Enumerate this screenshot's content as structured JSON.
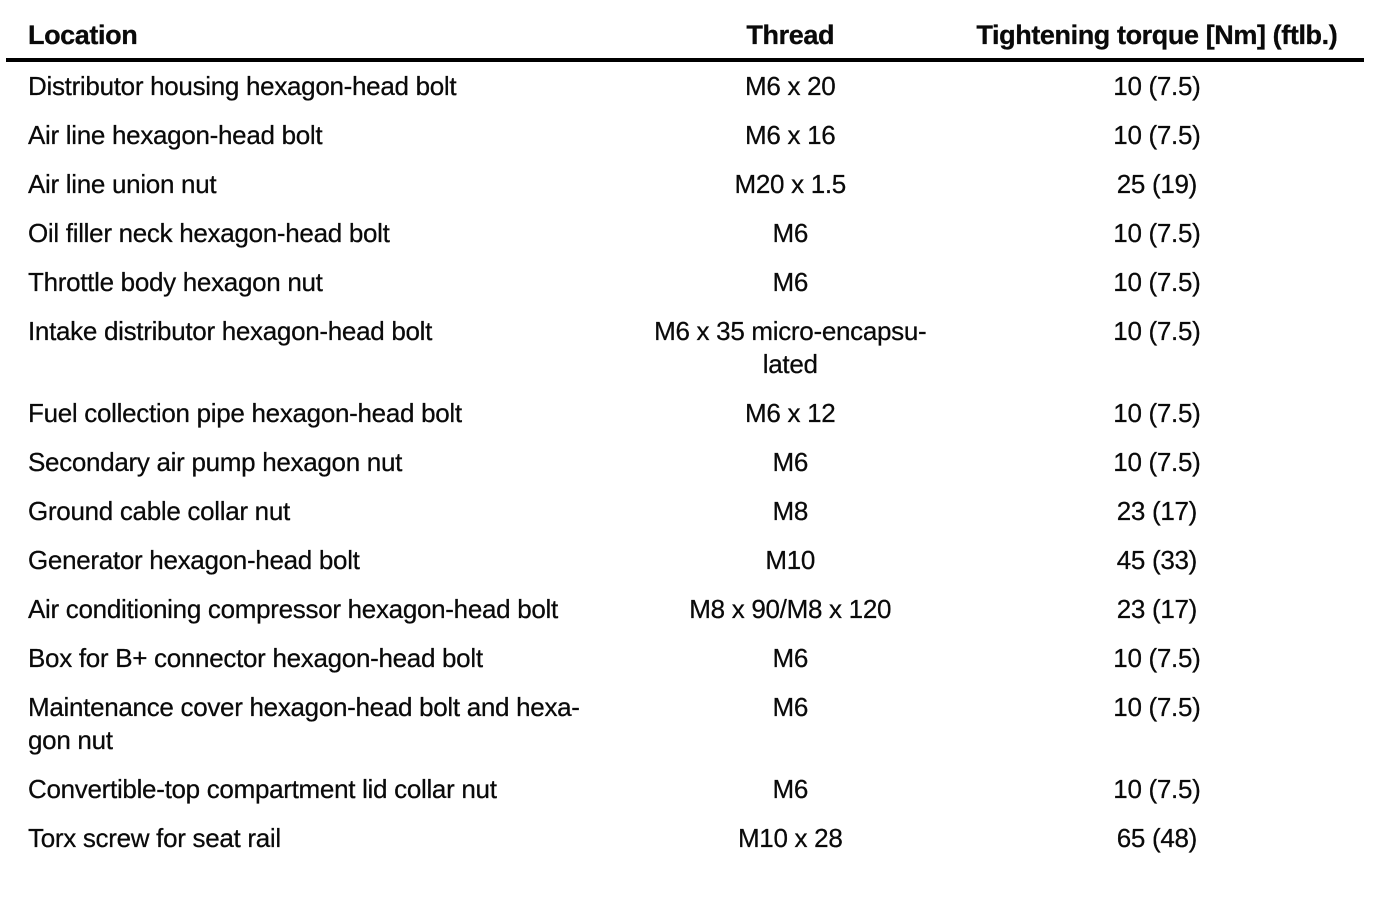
{
  "colors": {
    "background": "#ffffff",
    "text": "#0a0a0a",
    "header_rule": "#000000"
  },
  "table": {
    "columns": [
      {
        "key": "location",
        "label": "Location",
        "align": "left"
      },
      {
        "key": "thread",
        "label": "Thread",
        "align": "center"
      },
      {
        "key": "torque",
        "label": "Tightening torque [Nm] (ftlb.)",
        "align": "center"
      }
    ],
    "rows": [
      {
        "location": "Distributor housing hexagon-head bolt",
        "thread": "M6 x 20",
        "torque": "10 (7.5)"
      },
      {
        "location": "Air line hexagon-head bolt",
        "thread": "M6 x 16",
        "torque": "10 (7.5)"
      },
      {
        "location": "Air line union nut",
        "thread": "M20 x 1.5",
        "torque": "25 (19)"
      },
      {
        "location": "Oil filler neck hexagon-head bolt",
        "thread": "M6",
        "torque": "10 (7.5)"
      },
      {
        "location": "Throttle body hexagon nut",
        "thread": "M6",
        "torque": "10 (7.5)"
      },
      {
        "location": "Intake distributor hexagon-head bolt",
        "thread": "M6 x 35 micro-encapsu-\nlated",
        "torque": "10 (7.5)"
      },
      {
        "location": "Fuel collection pipe hexagon-head bolt",
        "thread": "M6 x 12",
        "torque": "10 (7.5)"
      },
      {
        "location": "Secondary air pump hexagon nut",
        "thread": "M6",
        "torque": "10 (7.5)"
      },
      {
        "location": "Ground cable collar nut",
        "thread": "M8",
        "torque": "23 (17)"
      },
      {
        "location": "Generator hexagon-head bolt",
        "thread": "M10",
        "torque": "45 (33)"
      },
      {
        "location": "Air conditioning compressor hexagon-head bolt",
        "thread": "M8 x 90/M8 x 120",
        "torque": "23 (17)"
      },
      {
        "location": "Box for B+ connector hexagon-head bolt",
        "thread": "M6",
        "torque": "10 (7.5)"
      },
      {
        "location": "Maintenance cover hexagon-head bolt and hexa-\ngon nut",
        "thread": "M6",
        "torque": "10 (7.5)"
      },
      {
        "location": "Convertible-top compartment lid collar nut",
        "thread": "M6",
        "torque": "10 (7.5)"
      },
      {
        "location": "Torx screw for seat rail",
        "thread": "M10 x 28",
        "torque": "65 (48)"
      }
    ]
  }
}
